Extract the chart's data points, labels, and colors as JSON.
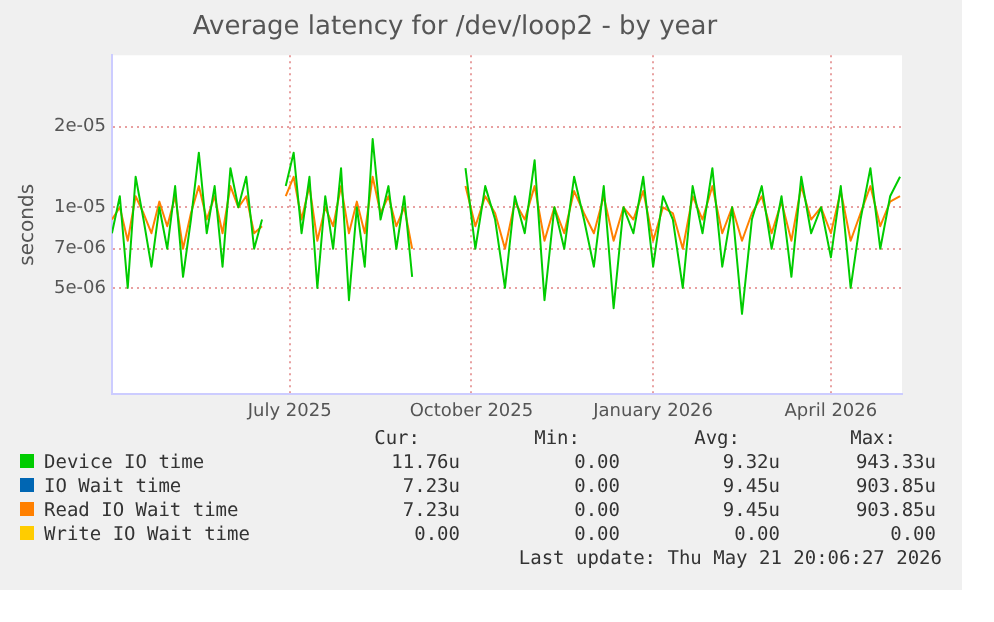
{
  "chart_data": {
    "type": "line",
    "title": "Average latency for /dev/loop2 - by year",
    "ylabel": "seconds",
    "log": "y",
    "grid": true,
    "legend": "bottom",
    "xlim": [
      "2025-04-02",
      "2026-05-07"
    ],
    "xticks": [
      {
        "value": "2025-07-01",
        "label": "July 2025"
      },
      {
        "value": "2025-10-01",
        "label": "October 2025"
      },
      {
        "value": "2026-01-01",
        "label": "January 2026"
      },
      {
        "value": "2026-04-01",
        "label": "April 2026"
      }
    ],
    "ylim": [
      2e-06,
      3.7e-05
    ],
    "yticks": [
      {
        "value": 5e-06,
        "label": "5e-06"
      },
      {
        "value": 7e-06,
        "label": "7e-06"
      },
      {
        "value": 1e-05,
        "label": "1e-05"
      },
      {
        "value": 2e-05,
        "label": "2e-05"
      }
    ],
    "x": [
      "2025-04-02",
      "2025-04-06",
      "2025-04-10",
      "2025-04-14",
      "2025-04-18",
      "2025-04-22",
      "2025-04-26",
      "2025-04-30",
      "2025-05-04",
      "2025-05-08",
      "2025-05-12",
      "2025-05-16",
      "2025-05-20",
      "2025-05-24",
      "2025-05-28",
      "2025-06-01",
      "2025-06-05",
      "2025-06-09",
      "2025-06-13",
      "2025-06-17",
      "2025-06-23",
      "2025-06-29",
      "2025-07-03",
      "2025-07-07",
      "2025-07-11",
      "2025-07-15",
      "2025-07-19",
      "2025-07-23",
      "2025-07-27",
      "2025-07-31",
      "2025-08-04",
      "2025-08-08",
      "2025-08-12",
      "2025-08-16",
      "2025-08-20",
      "2025-08-24",
      "2025-08-28",
      "2025-09-01",
      "2025-09-15",
      "2025-09-28",
      "2025-10-03",
      "2025-10-08",
      "2025-10-13",
      "2025-10-18",
      "2025-10-23",
      "2025-10-28",
      "2025-11-02",
      "2025-11-07",
      "2025-11-12",
      "2025-11-17",
      "2025-11-22",
      "2025-11-27",
      "2025-12-02",
      "2025-12-07",
      "2025-12-12",
      "2025-12-17",
      "2025-12-22",
      "2025-12-27",
      "2026-01-01",
      "2026-01-06",
      "2026-01-11",
      "2026-01-16",
      "2026-01-21",
      "2026-01-26",
      "2026-01-31",
      "2026-02-05",
      "2026-02-10",
      "2026-02-15",
      "2026-02-20",
      "2026-02-25",
      "2026-03-02",
      "2026-03-07",
      "2026-03-12",
      "2026-03-17",
      "2026-03-22",
      "2026-03-27",
      "2026-04-01",
      "2026-04-06",
      "2026-04-11",
      "2026-04-16",
      "2026-04-21",
      "2026-04-26",
      "2026-05-01",
      "2026-05-06"
    ],
    "series": [
      {
        "name": "Device IO time",
        "color": "#00cc00",
        "values": [
          8e-06,
          1.1e-05,
          5e-06,
          1.3e-05,
          9e-06,
          6e-06,
          1e-05,
          7e-06,
          1.2e-05,
          5.5e-06,
          9e-06,
          1.6e-05,
          8e-06,
          1.2e-05,
          6e-06,
          1.4e-05,
          1e-05,
          1.3e-05,
          7e-06,
          9e-06,
          null,
          1.2e-05,
          1.6e-05,
          8e-06,
          1.3e-05,
          5e-06,
          1.1e-05,
          7e-06,
          1.4e-05,
          4.5e-06,
          1e-05,
          6e-06,
          1.8e-05,
          9e-06,
          1.2e-05,
          7e-06,
          1.1e-05,
          5.5e-06,
          null,
          1.4e-05,
          7e-06,
          1.2e-05,
          9e-06,
          5e-06,
          1.1e-05,
          8e-06,
          1.5e-05,
          4.5e-06,
          1e-05,
          7e-06,
          1.3e-05,
          9e-06,
          6e-06,
          1.2e-05,
          4.2e-06,
          1e-05,
          8e-06,
          1.3e-05,
          6e-06,
          1.1e-05,
          9e-06,
          5e-06,
          1.2e-05,
          8e-06,
          1.4e-05,
          6e-06,
          1e-05,
          4e-06,
          9e-06,
          1.2e-05,
          7e-06,
          1.1e-05,
          5.5e-06,
          1.3e-05,
          8e-06,
          1e-05,
          6.5e-06,
          1.2e-05,
          5e-06,
          9e-06,
          1.4e-05,
          7e-06,
          1.1e-05,
          1.3e-05
        ]
      },
      {
        "name": "IO Wait time",
        "color": "#0066b3",
        "values": [
          null,
          null,
          null,
          null,
          null,
          null,
          null,
          null,
          null,
          null,
          null,
          null,
          null,
          null,
          null,
          null,
          null,
          null,
          null,
          null,
          null,
          null,
          null,
          null,
          null,
          null,
          null,
          null,
          null,
          null,
          null,
          null,
          null,
          null,
          null,
          null,
          null,
          null,
          null,
          null,
          null,
          null,
          null,
          null,
          null,
          null,
          null,
          null,
          null,
          null,
          null,
          null,
          null,
          null,
          null,
          null,
          null,
          null,
          null,
          null,
          null,
          null,
          null,
          null,
          null,
          null,
          null,
          null,
          null,
          null,
          null,
          null,
          null,
          null,
          null,
          null,
          null,
          null,
          null,
          null,
          null,
          null,
          null,
          null
        ]
      },
      {
        "name": "Read IO Wait time",
        "color": "#ff8000",
        "values": [
          9e-06,
          1e-05,
          7.5e-06,
          1.1e-05,
          9.5e-06,
          8e-06,
          1.05e-05,
          8.5e-06,
          1.1e-05,
          7e-06,
          9.5e-06,
          1.2e-05,
          9e-06,
          1.1e-05,
          8e-06,
          1.2e-05,
          1e-05,
          1.1e-05,
          8e-06,
          8.5e-06,
          null,
          1.1e-05,
          1.3e-05,
          9e-06,
          1.2e-05,
          7.5e-06,
          1e-05,
          8.5e-06,
          1.2e-05,
          8e-06,
          1.05e-05,
          8e-06,
          1.3e-05,
          9.5e-06,
          1.1e-05,
          8.5e-06,
          1e-05,
          7e-06,
          null,
          1.2e-05,
          8.5e-06,
          1.1e-05,
          9.5e-06,
          7e-06,
          1.05e-05,
          9e-06,
          1.2e-05,
          7.5e-06,
          1e-05,
          8e-06,
          1.15e-05,
          9.5e-06,
          8e-06,
          1.1e-05,
          7.5e-06,
          1e-05,
          9e-06,
          1.15e-05,
          7.5e-06,
          1e-05,
          9.5e-06,
          7e-06,
          1.1e-05,
          9e-06,
          1.2e-05,
          8e-06,
          1e-05,
          7.5e-06,
          9.5e-06,
          1.1e-05,
          8e-06,
          1.05e-05,
          7.5e-06,
          1.2e-05,
          9e-06,
          1e-05,
          8e-06,
          1.15e-05,
          7.5e-06,
          9.5e-06,
          1.2e-05,
          8.5e-06,
          1.05e-05,
          1.1e-05
        ]
      },
      {
        "name": "Write IO Wait time",
        "color": "#ffcc00",
        "values": [
          null,
          null,
          null,
          null,
          null,
          null,
          null,
          null,
          null,
          null,
          null,
          null,
          null,
          null,
          null,
          null,
          null,
          null,
          null,
          null,
          null,
          null,
          null,
          null,
          null,
          null,
          null,
          null,
          null,
          null,
          null,
          null,
          null,
          null,
          null,
          null,
          null,
          null,
          null,
          null,
          null,
          null,
          null,
          null,
          null,
          null,
          null,
          null,
          null,
          null,
          null,
          null,
          null,
          null,
          null,
          null,
          null,
          null,
          null,
          null,
          null,
          null,
          null,
          null,
          null,
          null,
          null,
          null,
          null,
          null,
          null,
          null,
          null,
          null,
          null,
          null,
          null,
          null,
          null,
          null,
          null,
          null,
          null,
          null
        ]
      }
    ],
    "annotations": [
      "Cur:",
      "Min:",
      "Avg:",
      "Max:",
      "11.76u",
      "0.00",
      "9.32u",
      "943.33u",
      "7.23u",
      "0.00",
      "9.45u",
      "903.85u",
      "7.23u",
      "0.00",
      "9.45u",
      "903.85u",
      "0.00",
      "0.00",
      "0.00",
      "0.00",
      "Last update: Thu May 21 20:06:27 2026"
    ]
  }
}
